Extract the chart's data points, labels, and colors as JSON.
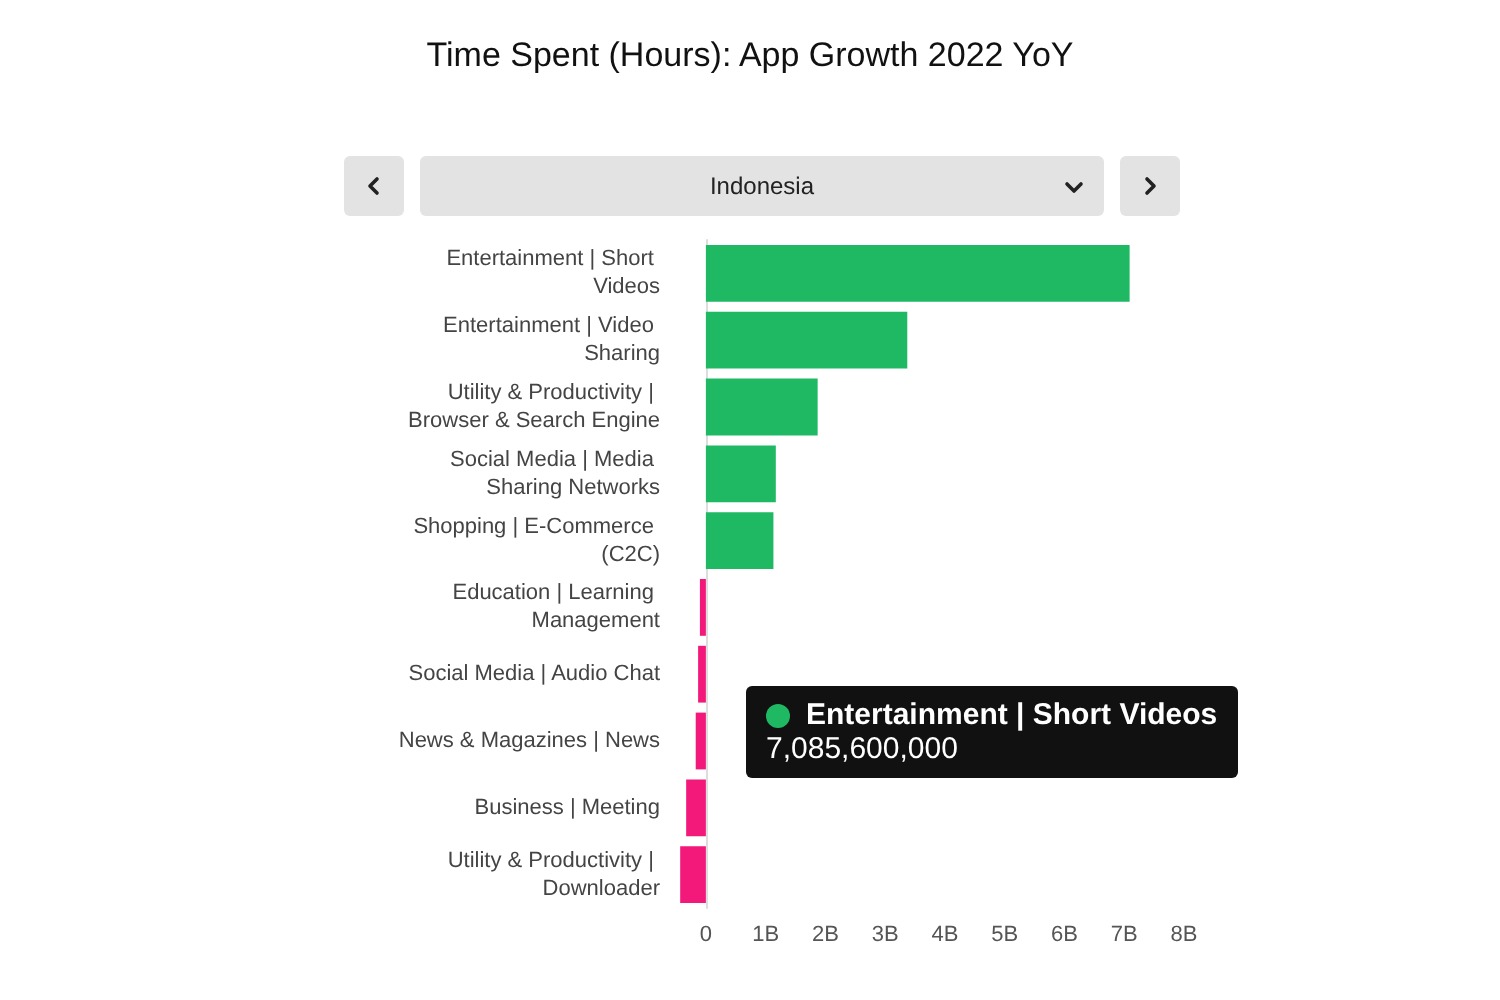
{
  "chart_data": {
    "type": "bar",
    "orientation": "horizontal",
    "title": "Time Spent (Hours): App Growth 2022 YoY",
    "categories": [
      "Entertainment | Short Videos",
      "Entertainment | Video Sharing",
      "Utility & Productivity | Browser & Search Engine",
      "Social Media | Media Sharing Networks",
      "Shopping | E-Commerce (C2C)",
      "Education | Learning Management",
      "Social Media | Audio Chat",
      "News & Magazines | News",
      "Business | Meeting",
      "Utility & Productivity | Downloader"
    ],
    "values": [
      7.09,
      3.37,
      1.87,
      1.17,
      1.13,
      -0.1,
      -0.13,
      -0.17,
      -0.33,
      -0.43
    ],
    "colors": [
      "#1fb964",
      "#1fb964",
      "#1fb964",
      "#1fb964",
      "#1fb964",
      "#f2197a",
      "#f2197a",
      "#f2197a",
      "#f2197a",
      "#f2197a"
    ],
    "xlim": [
      -0.5,
      8
    ],
    "xticks": [
      {
        "value": 0,
        "label": "0"
      },
      {
        "value": 1,
        "label": "1B"
      },
      {
        "value": 2,
        "label": "2B"
      },
      {
        "value": 3,
        "label": "3B"
      },
      {
        "value": 4,
        "label": "4B"
      },
      {
        "value": 5,
        "label": "5B"
      },
      {
        "value": 6,
        "label": "6B"
      },
      {
        "value": 7,
        "label": "7B"
      },
      {
        "value": 8,
        "label": "8B"
      }
    ],
    "grid": false,
    "annotations": [
      "Indonesia",
      "Entertainment | Short Videos",
      "7,085,600,000"
    ]
  }
}
